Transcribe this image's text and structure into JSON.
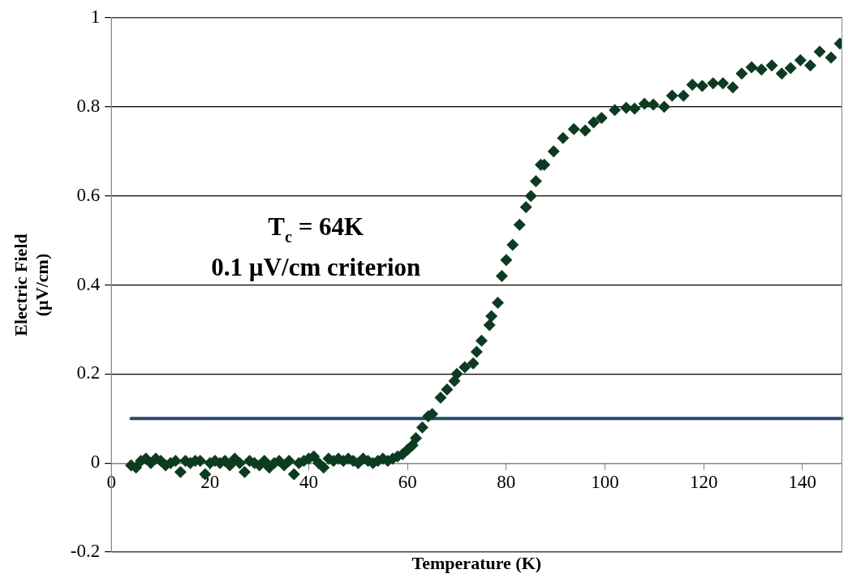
{
  "chart_data": {
    "type": "scatter",
    "xlabel": "Temperature (K)",
    "ylabel": "Electric Field\n(µV/cm)",
    "annotations": [
      "T$_{c}$ = 64K",
      "0.1 µV/cm criterion"
    ],
    "xlim": [
      0,
      148
    ],
    "xticks": [
      0,
      20,
      40,
      60,
      80,
      100,
      120,
      140
    ],
    "ylim": [
      -0.2,
      1
    ],
    "yticks": [
      -0.2,
      0,
      0.2,
      0.4,
      0.6,
      0.8,
      1
    ],
    "grid": "y",
    "marker": "diamond",
    "legend": false,
    "ref_lines": [
      {
        "axis": "y",
        "value": 0.1,
        "color": "#264a6b"
      }
    ],
    "series": [
      {
        "color": "#0d3b22",
        "x": [
          4,
          5,
          6,
          7,
          8,
          9,
          10,
          11,
          12,
          13,
          14,
          15,
          16,
          17,
          18,
          19,
          20,
          21,
          22,
          23,
          24,
          25,
          26,
          27,
          28,
          29,
          30,
          31,
          32,
          33,
          34,
          35,
          36,
          37,
          38,
          39,
          40,
          41,
          42,
          43,
          44,
          45,
          46,
          47,
          48,
          49,
          50,
          51,
          52,
          53,
          54,
          55,
          56,
          57,
          58,
          59,
          60,
          61,
          61.7,
          63,
          64.2,
          65,
          66.7,
          68,
          69.5,
          70,
          71.6,
          73.3,
          74,
          75,
          76.6,
          77,
          78.3,
          79.1,
          80,
          81.3,
          82.7,
          84,
          85,
          86,
          87,
          87.7,
          89.6,
          91.5,
          93.7,
          96,
          97.7,
          99.3,
          102,
          104.3,
          106,
          108,
          109.8,
          112,
          113.6,
          115.9,
          117.7,
          119.7,
          121.9,
          123.9,
          125.9,
          127.7,
          129.7,
          131.7,
          133.8,
          135.8,
          137.6,
          139.6,
          141.6,
          143.5,
          145.8,
          147.6
        ],
        "values": [
          -0.005,
          -0.01,
          0.005,
          0.01,
          0,
          0.01,
          0.005,
          -0.005,
          0,
          0.005,
          -0.02,
          0.005,
          0,
          0.005,
          0.005,
          -0.025,
          0,
          0.005,
          0,
          0.005,
          -0.005,
          0.01,
          0,
          -0.02,
          0.005,
          0,
          -0.005,
          0.005,
          -0.01,
          0,
          0.005,
          -0.005,
          0.005,
          -0.025,
          0,
          0.005,
          0.01,
          0.015,
          0,
          -0.01,
          0.01,
          0.005,
          0.01,
          0.005,
          0.01,
          0.005,
          0,
          0.01,
          0.005,
          0,
          0.005,
          0.01,
          0.005,
          0.01,
          0.015,
          0.02,
          0.03,
          0.04,
          0.056,
          0.08,
          0.105,
          0.11,
          0.147,
          0.165,
          0.184,
          0.2,
          0.215,
          0.224,
          0.25,
          0.275,
          0.31,
          0.33,
          0.36,
          0.42,
          0.456,
          0.49,
          0.535,
          0.575,
          0.6,
          0.633,
          0.67,
          0.67,
          0.7,
          0.73,
          0.75,
          0.747,
          0.765,
          0.775,
          0.793,
          0.798,
          0.796,
          0.807,
          0.805,
          0.8,
          0.825,
          0.825,
          0.85,
          0.847,
          0.853,
          0.853,
          0.844,
          0.875,
          0.889,
          0.884,
          0.893,
          0.875,
          0.887,
          0.905,
          0.893,
          0.924,
          0.911,
          0.942
        ]
      }
    ]
  }
}
